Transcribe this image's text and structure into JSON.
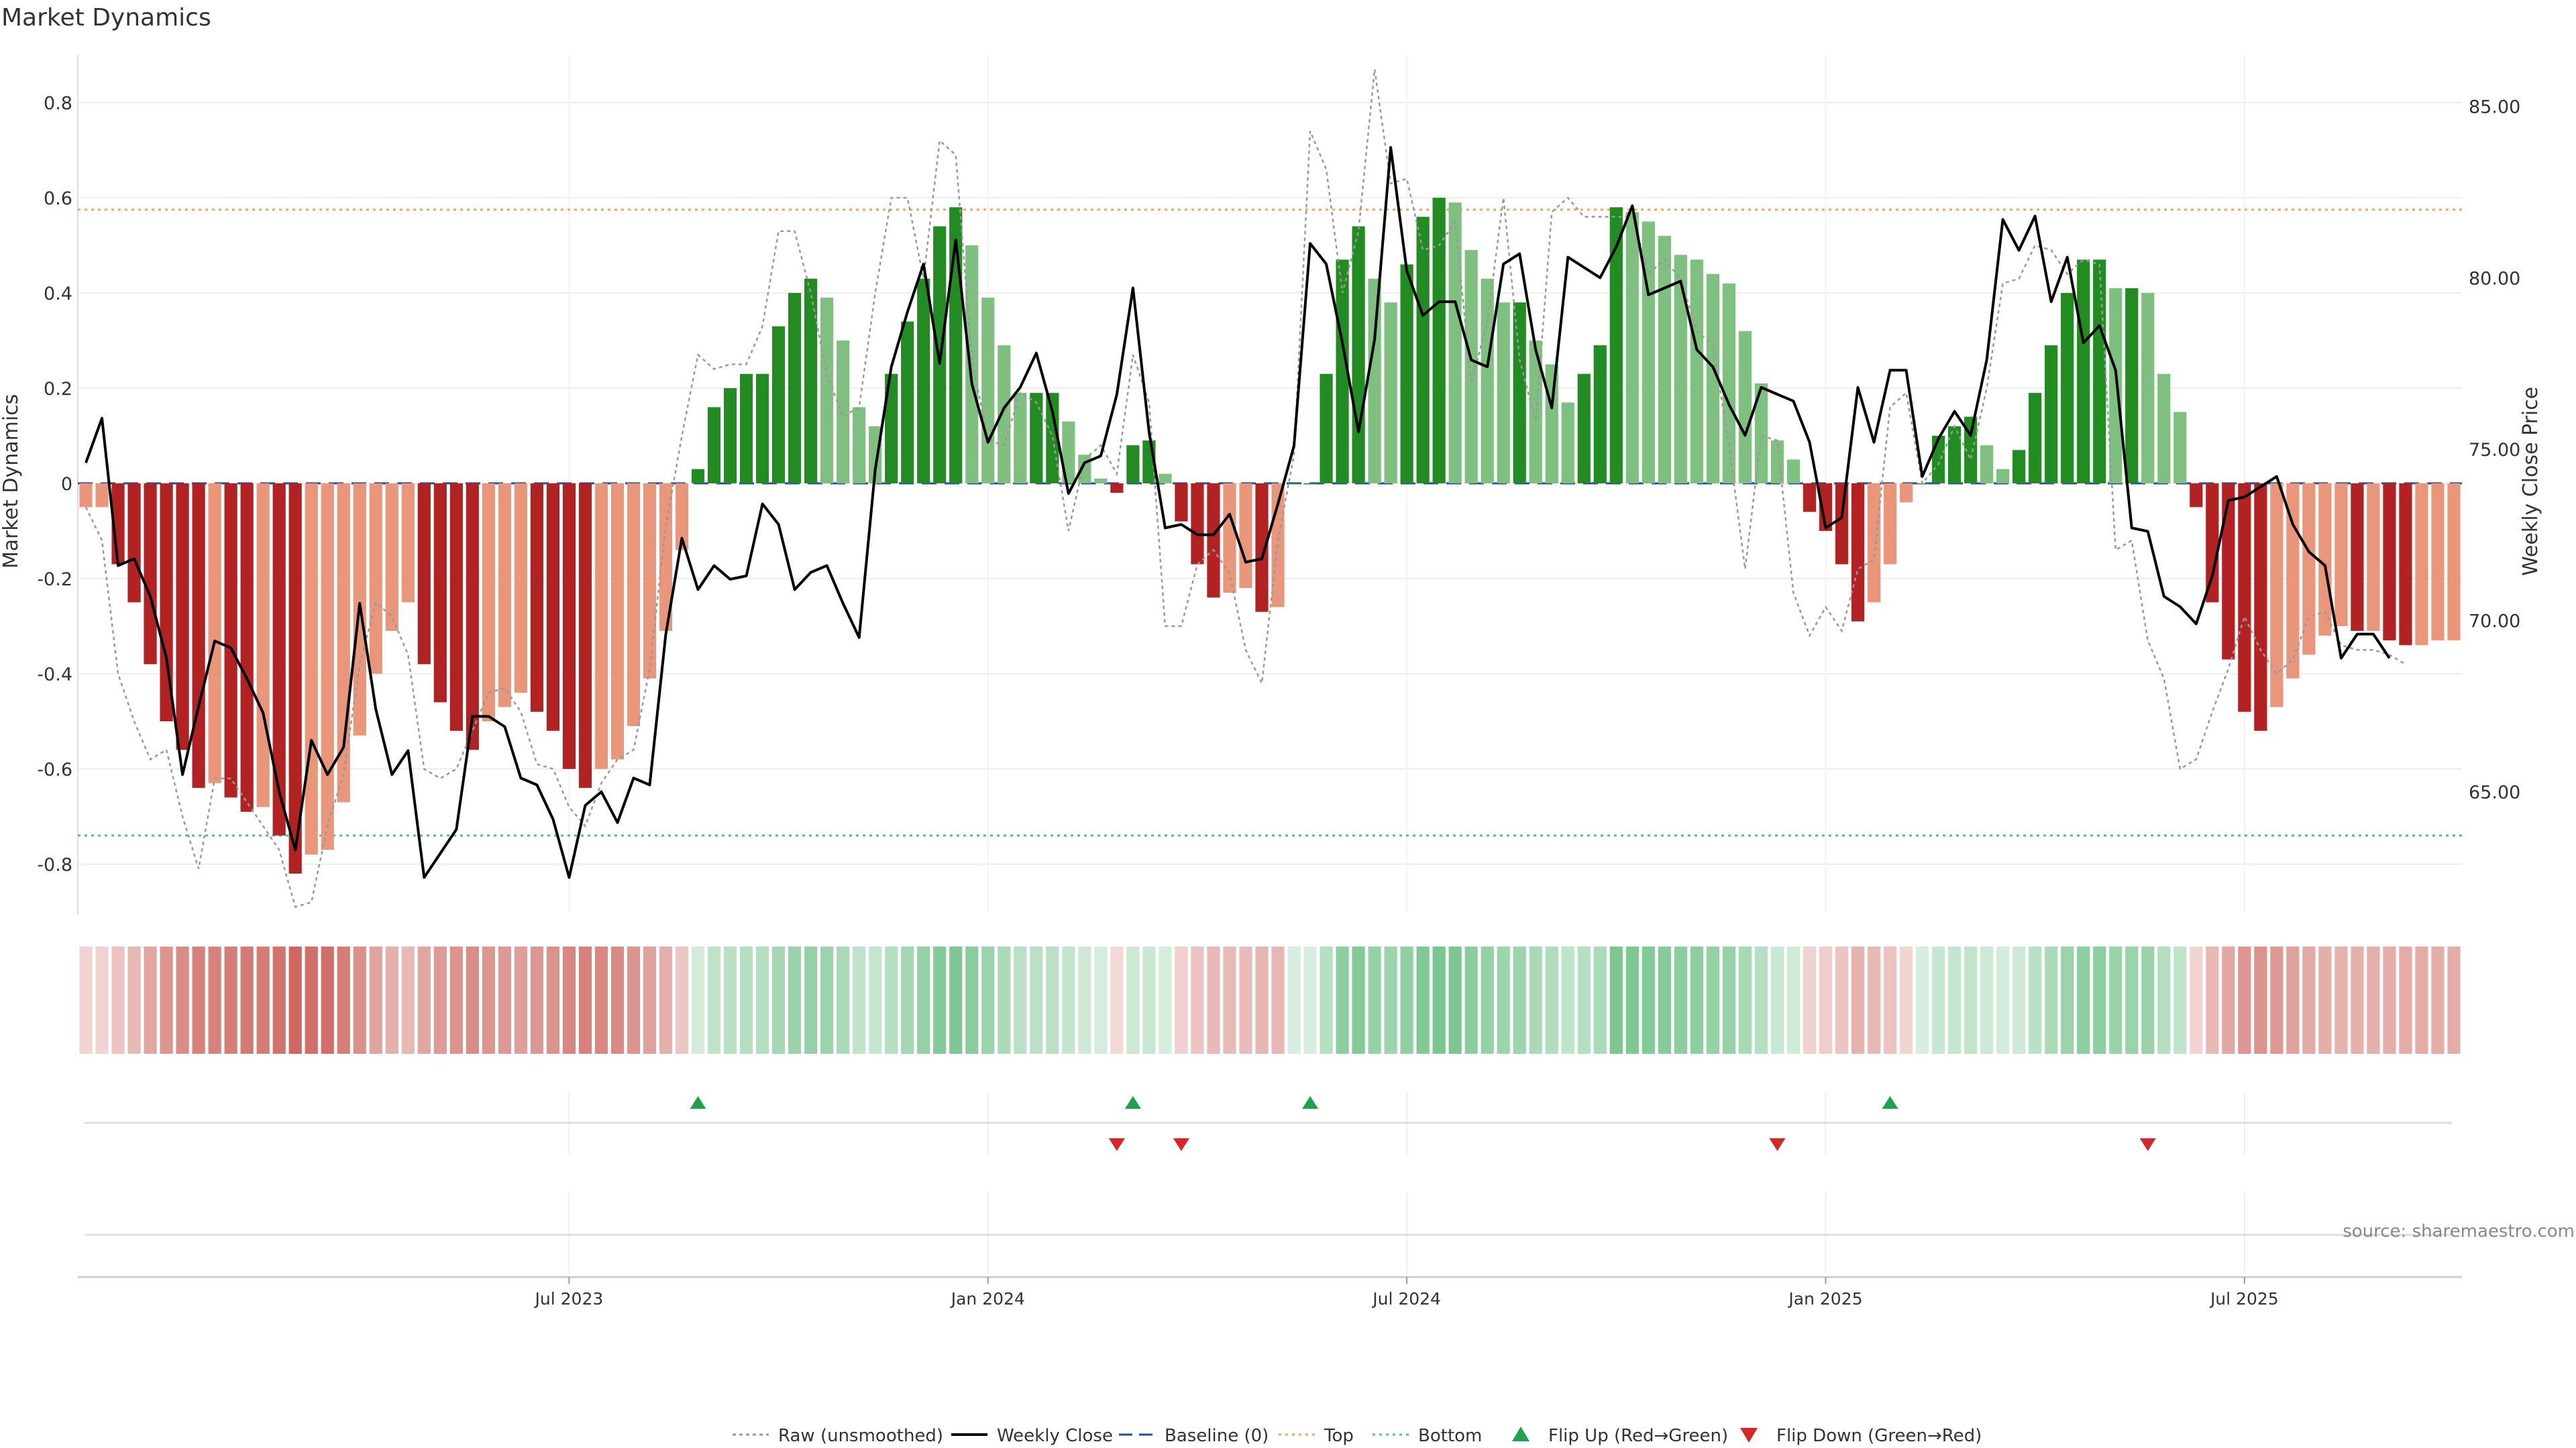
{
  "title": "Market Dynamics",
  "source": "source: sharemaestro.com",
  "colors": {
    "red_strong": "#b22222",
    "red_light": "#e9967a",
    "green_strong": "#228b22",
    "green_light": "#7fbf7f",
    "top_line": "#f4a460",
    "bottom_line": "#56b4c8",
    "baseline": "#1f4e9c",
    "flip_up": "#22a050",
    "flip_down": "#d62728",
    "close_line": "#000000",
    "raw_line": "#999999"
  },
  "chart_data": {
    "type": "bar+line",
    "title": "Market Dynamics",
    "ylabel": "Market Dynamics",
    "y2label": "Weekly Close Price",
    "ylim": [
      -0.9,
      0.9
    ],
    "y2lim": [
      61.5,
      86.5
    ],
    "yticks": [
      "0.8",
      "0.6",
      "0.4",
      "0.2",
      "0",
      "-0.2",
      "-0.4",
      "-0.6",
      "-0.8"
    ],
    "y2ticks": [
      "85.00",
      "80.00",
      "75.00",
      "70.00",
      "65.00"
    ],
    "xticks": [
      "Jul 2023",
      "Jan 2024",
      "Jul 2024",
      "Jan 2025",
      "Jul 2025"
    ],
    "xtick_index": [
      30,
      56,
      82,
      108,
      134
    ],
    "top": 0.575,
    "bottom": -0.74,
    "baseline": 0,
    "bars": [
      -0.05,
      -0.05,
      -0.17,
      -0.25,
      -0.38,
      -0.5,
      -0.56,
      -0.64,
      -0.63,
      -0.66,
      -0.69,
      -0.68,
      -0.74,
      -0.82,
      -0.78,
      -0.77,
      -0.67,
      -0.53,
      -0.4,
      -0.31,
      -0.25,
      -0.38,
      -0.46,
      -0.52,
      -0.56,
      -0.5,
      -0.47,
      -0.44,
      -0.48,
      -0.52,
      -0.6,
      -0.64,
      -0.6,
      -0.58,
      -0.51,
      -0.41,
      -0.31,
      -0.14,
      0.03,
      0.16,
      0.2,
      0.23,
      0.23,
      0.33,
      0.4,
      0.43,
      0.39,
      0.3,
      0.16,
      0.12,
      0.23,
      0.34,
      0.43,
      0.54,
      0.58,
      0.5,
      0.39,
      0.29,
      0.19,
      0.19,
      0.19,
      0.13,
      0.06,
      0.01,
      -0.02,
      0.08,
      0.09,
      0.02,
      -0.08,
      -0.17,
      -0.24,
      -0.23,
      -0.22,
      -0.27,
      -0.26,
      0.0,
      0.0,
      0.23,
      0.47,
      0.54,
      0.43,
      0.38,
      0.46,
      0.56,
      0.6,
      0.59,
      0.49,
      0.43,
      0.38,
      0.38,
      0.3,
      0.25,
      0.17,
      0.23,
      0.29,
      0.58,
      0.57,
      0.55,
      0.52,
      0.48,
      0.47,
      0.44,
      0.42,
      0.32,
      0.21,
      0.09,
      0.05,
      -0.06,
      -0.1,
      -0.17,
      -0.29,
      -0.25,
      -0.17,
      -0.04,
      0.0,
      0.1,
      0.12,
      0.14,
      0.08,
      0.03,
      0.07,
      0.19,
      0.29,
      0.4,
      0.47,
      0.47,
      0.41,
      0.41,
      0.4,
      0.23,
      0.15,
      -0.05,
      -0.25,
      -0.37,
      -0.48,
      -0.52,
      -0.47,
      -0.41,
      -0.36,
      -0.32,
      -0.3,
      -0.31,
      -0.31,
      -0.33,
      -0.34,
      -0.34,
      -0.33,
      -0.33
    ],
    "raw": [
      -0.05,
      -0.12,
      -0.4,
      -0.5,
      -0.58,
      -0.56,
      -0.7,
      -0.81,
      -0.62,
      -0.62,
      -0.67,
      -0.72,
      -0.77,
      -0.89,
      -0.88,
      -0.72,
      -0.61,
      -0.38,
      -0.25,
      -0.28,
      -0.36,
      -0.6,
      -0.62,
      -0.6,
      -0.52,
      -0.44,
      -0.43,
      -0.48,
      -0.59,
      -0.6,
      -0.68,
      -0.72,
      -0.63,
      -0.58,
      -0.56,
      -0.39,
      -0.09,
      0.1,
      0.27,
      0.24,
      0.25,
      0.25,
      0.33,
      0.53,
      0.53,
      0.4,
      0.23,
      0.14,
      0.16,
      0.4,
      0.6,
      0.6,
      0.43,
      0.72,
      0.69,
      0.26,
      0.09,
      0.08,
      0.19,
      0.17,
      0.1,
      -0.1,
      0.05,
      0.08,
      0.02,
      0.27,
      0.17,
      -0.3,
      -0.3,
      -0.17,
      -0.14,
      -0.19,
      -0.35,
      -0.42,
      -0.12,
      0.06,
      0.74,
      0.66,
      0.4,
      0.53,
      0.87,
      0.63,
      0.64,
      0.49,
      0.5,
      0.55,
      0.21,
      0.34,
      0.6,
      0.26,
      0.13,
      0.57,
      0.6,
      0.56,
      0.56,
      0.56,
      0.56,
      0.44,
      0.47,
      0.43,
      0.32,
      0.29,
      0.08,
      -0.18,
      0.1,
      0.09,
      -0.23,
      -0.32,
      -0.26,
      -0.31,
      -0.18,
      -0.16,
      0.16,
      0.19,
      0.0,
      0.04,
      0.12,
      0.05,
      0.2,
      0.42,
      0.43,
      0.5,
      0.49,
      0.44,
      0.47,
      0.46,
      -0.14,
      -0.12,
      -0.33,
      -0.41,
      -0.6,
      -0.58,
      -0.48,
      -0.39,
      -0.28,
      -0.35,
      -0.4,
      -0.37,
      -0.28,
      -0.27,
      -0.34,
      -0.35,
      -0.35,
      -0.36,
      -0.38
    ],
    "close": [
      74.6,
      75.9,
      71.6,
      71.8,
      70.7,
      68.9,
      65.5,
      67.5,
      69.4,
      69.2,
      68.3,
      67.3,
      65.0,
      63.3,
      66.5,
      65.5,
      66.3,
      70.5,
      67.4,
      65.5,
      66.2,
      62.5,
      63.2,
      63.9,
      67.2,
      67.2,
      66.9,
      65.4,
      65.2,
      64.2,
      62.5,
      64.6,
      65.0,
      64.1,
      65.4,
      65.2,
      69.6,
      72.4,
      70.9,
      71.6,
      71.2,
      71.3,
      73.4,
      72.8,
      70.9,
      71.4,
      71.6,
      70.5,
      69.5,
      74.4,
      77.4,
      79.0,
      80.4,
      77.5,
      81.1,
      76.9,
      75.2,
      76.2,
      76.8,
      77.8,
      76.1,
      73.7,
      74.6,
      74.8,
      76.6,
      79.7,
      75.5,
      72.7,
      72.8,
      72.5,
      72.5,
      73.1,
      71.7,
      71.8,
      73.4,
      75.1,
      81.0,
      80.4,
      78.1,
      75.5,
      78.2,
      83.8,
      80.2,
      78.9,
      79.3,
      79.3,
      77.6,
      77.4,
      80.4,
      80.7,
      77.9,
      76.2,
      80.6,
      80.3,
      80.0,
      80.9,
      82.1,
      79.5,
      79.7,
      79.9,
      77.9,
      77.4,
      76.3,
      75.4,
      76.8,
      76.6,
      76.4,
      75.2,
      72.7,
      73.0,
      76.8,
      75.2,
      77.3,
      77.3,
      74.2,
      75.3,
      76.1,
      75.4,
      77.6,
      81.7,
      80.8,
      81.8,
      79.3,
      80.6,
      78.1,
      78.6,
      77.3,
      72.7,
      72.6,
      70.7,
      70.4,
      69.9,
      71.3,
      73.5,
      73.6,
      73.9,
      74.2,
      72.8,
      72.0,
      71.6,
      68.9,
      69.6,
      69.6,
      68.9
    ]
  },
  "regime_strip": {
    "label": ""
  },
  "flips": {
    "up": [
      38,
      65,
      76,
      112
    ],
    "down": [
      64,
      68,
      105,
      128
    ]
  },
  "legend": [
    {
      "label": "Raw (unsmoothed)",
      "kind": "dotted-gray"
    },
    {
      "label": "Weekly Close",
      "kind": "solid-black"
    },
    {
      "label": "Baseline (0)",
      "kind": "dashed-blue"
    },
    {
      "label": "Top",
      "kind": "dotted-orange"
    },
    {
      "label": "Bottom",
      "kind": "dotted-cyan"
    },
    {
      "label": "Flip Up (Red→Green)",
      "kind": "triangle-up"
    },
    {
      "label": "Flip Down (Green→Red)",
      "kind": "triangle-down"
    }
  ]
}
